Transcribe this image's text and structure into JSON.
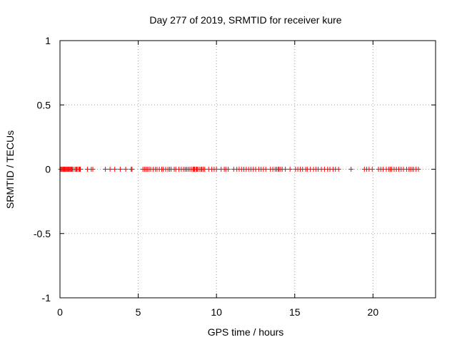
{
  "chart_data": {
    "type": "scatter",
    "title": "Day 277 of 2019, SRMTID for receiver kure",
    "xlabel": "GPS time / hours",
    "ylabel": "SRMTID / TECUs",
    "xlim": [
      0,
      24
    ],
    "ylim": [
      -1,
      1
    ],
    "xticks": [
      "0",
      "5",
      "10",
      "15",
      "20"
    ],
    "yticks": [
      "1",
      "0.5",
      "0",
      "-0.5",
      "-1"
    ],
    "grid": true,
    "legend": "none",
    "marker": "+",
    "marker_color": "#ff0000",
    "series": [
      {
        "y_constant": 0,
        "x": [
          0.05,
          0.1,
          0.15,
          0.2,
          0.25,
          0.3,
          0.35,
          0.4,
          0.45,
          0.5,
          0.55,
          0.6,
          0.65,
          0.7,
          0.75,
          0.8,
          0.9,
          1.0,
          1.05,
          1.1,
          1.2,
          1.25,
          1.3,
          1.75,
          2.0,
          2.1,
          2.9,
          3.2,
          3.5,
          3.85,
          4.2,
          4.55,
          4.6,
          5.3,
          5.4,
          5.5,
          5.6,
          5.7,
          5.8,
          5.95,
          6.1,
          6.2,
          6.35,
          6.5,
          6.6,
          6.75,
          6.9,
          7.0,
          7.1,
          7.3,
          7.4,
          7.6,
          7.75,
          7.9,
          8.0,
          8.1,
          8.2,
          8.3,
          8.4,
          8.5,
          8.55,
          8.6,
          8.7,
          8.75,
          8.8,
          8.9,
          9.0,
          9.05,
          9.15,
          9.25,
          9.5,
          9.7,
          9.85,
          10.0,
          10.3,
          10.5,
          10.6,
          10.75,
          11.1,
          11.3,
          11.45,
          11.6,
          11.75,
          11.9,
          12.05,
          12.2,
          12.35,
          12.5,
          12.7,
          12.85,
          13.0,
          13.15,
          13.45,
          13.6,
          13.75,
          13.85,
          13.95,
          14.0,
          14.1,
          14.2,
          14.4,
          14.7,
          15.05,
          15.2,
          15.35,
          15.5,
          15.7,
          15.8,
          16.0,
          16.2,
          16.35,
          16.5,
          16.7,
          16.9,
          17.1,
          17.25,
          17.45,
          17.6,
          17.8,
          18.6,
          19.45,
          19.6,
          19.75,
          19.95,
          20.35,
          20.5,
          20.65,
          20.85,
          21.0,
          21.1,
          21.2,
          21.35,
          21.5,
          21.65,
          21.8,
          21.95,
          22.15,
          22.3,
          22.4,
          22.5,
          22.6,
          22.75,
          22.9
        ]
      }
    ]
  }
}
